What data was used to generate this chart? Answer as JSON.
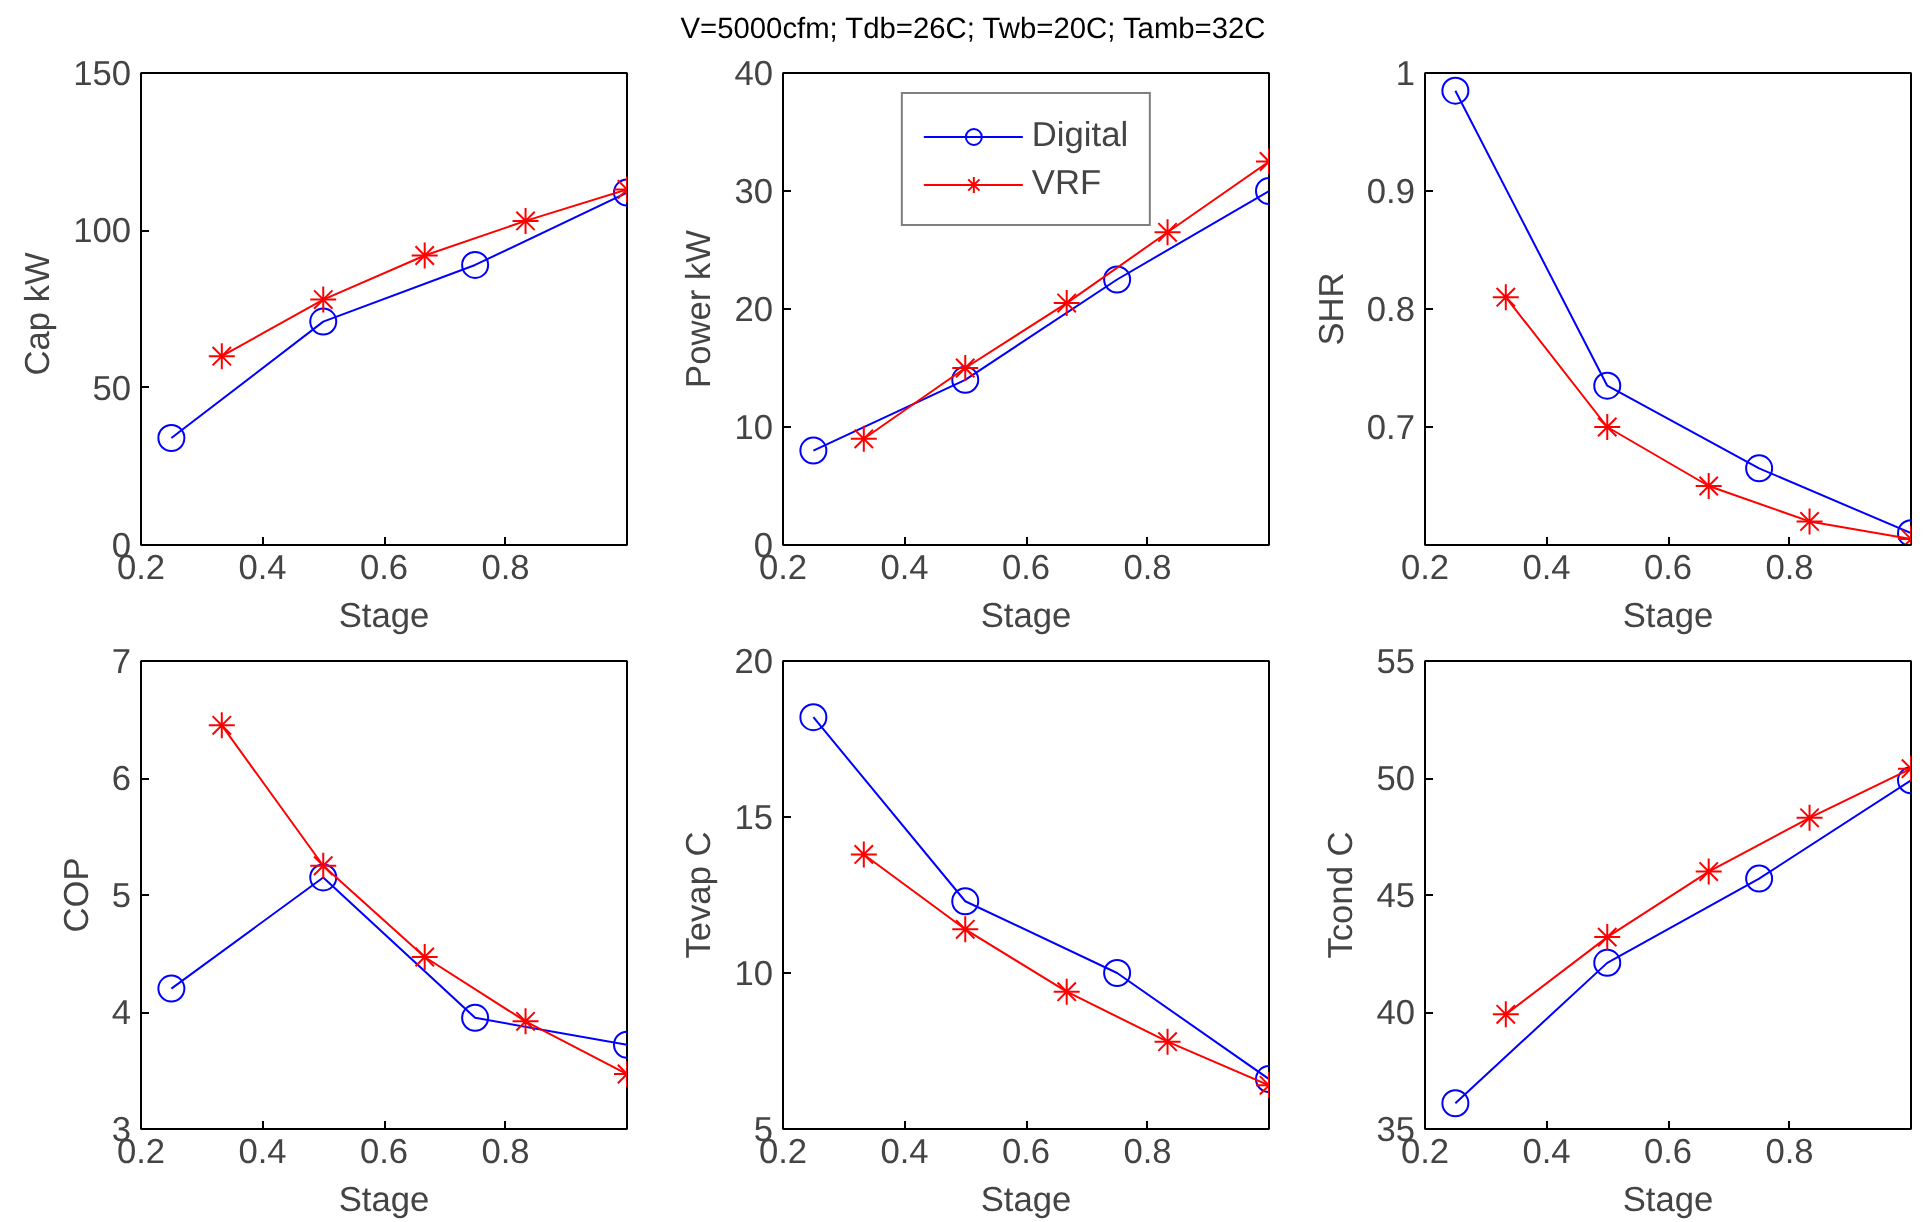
{
  "chart_data": [
    {
      "type": "line",
      "xlabel": "Stage",
      "ylabel": "Cap  kW",
      "xlim": [
        0.2,
        1.0
      ],
      "xticks": [
        0.2,
        0.4,
        0.6,
        0.8
      ],
      "ylim": [
        0,
        150
      ],
      "yticks": [
        0,
        50,
        100,
        150
      ],
      "grid": false,
      "legend": false,
      "line_style": "solid",
      "series": [
        {
          "color": "#0000ff",
          "marker": "circle",
          "x": [
            0.25,
            0.5,
            0.75,
            1.0
          ],
          "values": [
            34,
            71,
            89,
            112
          ]
        },
        {
          "color": "#ff0000",
          "marker": "cross",
          "x": [
            0.333,
            0.5,
            0.667,
            0.833,
            1.0
          ],
          "values": [
            60,
            78,
            92,
            103,
            113
          ]
        }
      ]
    },
    {
      "type": "line",
      "title": "V=5000cfm; Tdb=26C; Twb=20C; Tamb=32C",
      "xlabel": "Stage",
      "ylabel": "Power kW",
      "xlim": [
        0.2,
        1.0
      ],
      "xticks": [
        0.2,
        0.4,
        0.6,
        0.8
      ],
      "ylim": [
        0,
        40
      ],
      "yticks": [
        0,
        10,
        20,
        30,
        40
      ],
      "grid": false,
      "legend": "top",
      "line_style": "solid",
      "series": [
        {
          "name": "Digital",
          "color": "#0000ff",
          "marker": "circle",
          "x": [
            0.25,
            0.5,
            0.75,
            1.0
          ],
          "values": [
            8,
            14,
            22.5,
            30
          ]
        },
        {
          "name": "VRF",
          "color": "#ff0000",
          "marker": "cross",
          "x": [
            0.333,
            0.5,
            0.667,
            0.833,
            1.0
          ],
          "values": [
            9,
            15,
            20.5,
            26.5,
            32.5
          ]
        }
      ]
    },
    {
      "type": "line",
      "xlabel": "Stage",
      "ylabel": "SHR",
      "xlim": [
        0.2,
        1.0
      ],
      "xticks": [
        0.2,
        0.4,
        0.6,
        0.8
      ],
      "ylim": [
        0.6,
        1.0
      ],
      "yticks": [
        0.7,
        0.8,
        0.9,
        1
      ],
      "grid": false,
      "legend": false,
      "line_style": "solid",
      "series": [
        {
          "color": "#0000ff",
          "marker": "circle",
          "x": [
            0.25,
            0.5,
            0.75,
            1.0
          ],
          "values": [
            0.985,
            0.735,
            0.665,
            0.61
          ]
        },
        {
          "color": "#ff0000",
          "marker": "cross",
          "x": [
            0.333,
            0.5,
            0.667,
            0.833,
            1.0
          ],
          "values": [
            0.81,
            0.7,
            0.65,
            0.62,
            0.605
          ]
        }
      ]
    },
    {
      "type": "line",
      "xlabel": "Stage",
      "ylabel": "COP",
      "xlim": [
        0.2,
        1.0
      ],
      "xticks": [
        0.2,
        0.4,
        0.6,
        0.8
      ],
      "ylim": [
        3,
        7
      ],
      "yticks": [
        3,
        4,
        5,
        6,
        7
      ],
      "grid": false,
      "legend": false,
      "line_style": "solid",
      "series": [
        {
          "color": "#0000ff",
          "marker": "circle",
          "x": [
            0.25,
            0.5,
            0.75,
            1.0
          ],
          "values": [
            4.2,
            5.15,
            3.95,
            3.72
          ]
        },
        {
          "color": "#ff0000",
          "marker": "cross",
          "x": [
            0.333,
            0.5,
            0.667,
            0.833,
            1.0
          ],
          "values": [
            6.45,
            5.25,
            4.47,
            3.92,
            3.47
          ]
        }
      ]
    },
    {
      "type": "line",
      "xlabel": "Stage",
      "ylabel": "Tevap C",
      "xlim": [
        0.2,
        1.0
      ],
      "xticks": [
        0.2,
        0.4,
        0.6,
        0.8
      ],
      "ylim": [
        5,
        20
      ],
      "yticks": [
        5,
        10,
        15,
        20
      ],
      "grid": false,
      "legend": false,
      "line_style": "solid",
      "series": [
        {
          "color": "#0000ff",
          "marker": "circle",
          "x": [
            0.25,
            0.5,
            0.75,
            1.0
          ],
          "values": [
            18.2,
            12.3,
            10,
            6.6
          ]
        },
        {
          "color": "#ff0000",
          "marker": "cross",
          "x": [
            0.333,
            0.5,
            0.667,
            0.833,
            1.0
          ],
          "values": [
            13.8,
            11.4,
            9.4,
            7.8,
            6.4
          ]
        }
      ]
    },
    {
      "type": "line",
      "xlabel": "Stage",
      "ylabel": "Tcond C",
      "xlim": [
        0.2,
        1.0
      ],
      "xticks": [
        0.2,
        0.4,
        0.6,
        0.8
      ],
      "ylim": [
        35,
        55
      ],
      "yticks": [
        35,
        40,
        45,
        50,
        55
      ],
      "grid": false,
      "legend": false,
      "line_style": "solid",
      "series": [
        {
          "color": "#0000ff",
          "marker": "circle",
          "x": [
            0.25,
            0.5,
            0.75,
            1.0
          ],
          "values": [
            36.1,
            42.1,
            45.7,
            49.9
          ]
        },
        {
          "color": "#ff0000",
          "marker": "cross",
          "x": [
            0.333,
            0.5,
            0.667,
            0.833,
            1.0
          ],
          "values": [
            39.9,
            43.2,
            46,
            48.3,
            50.4
          ]
        }
      ]
    }
  ]
}
